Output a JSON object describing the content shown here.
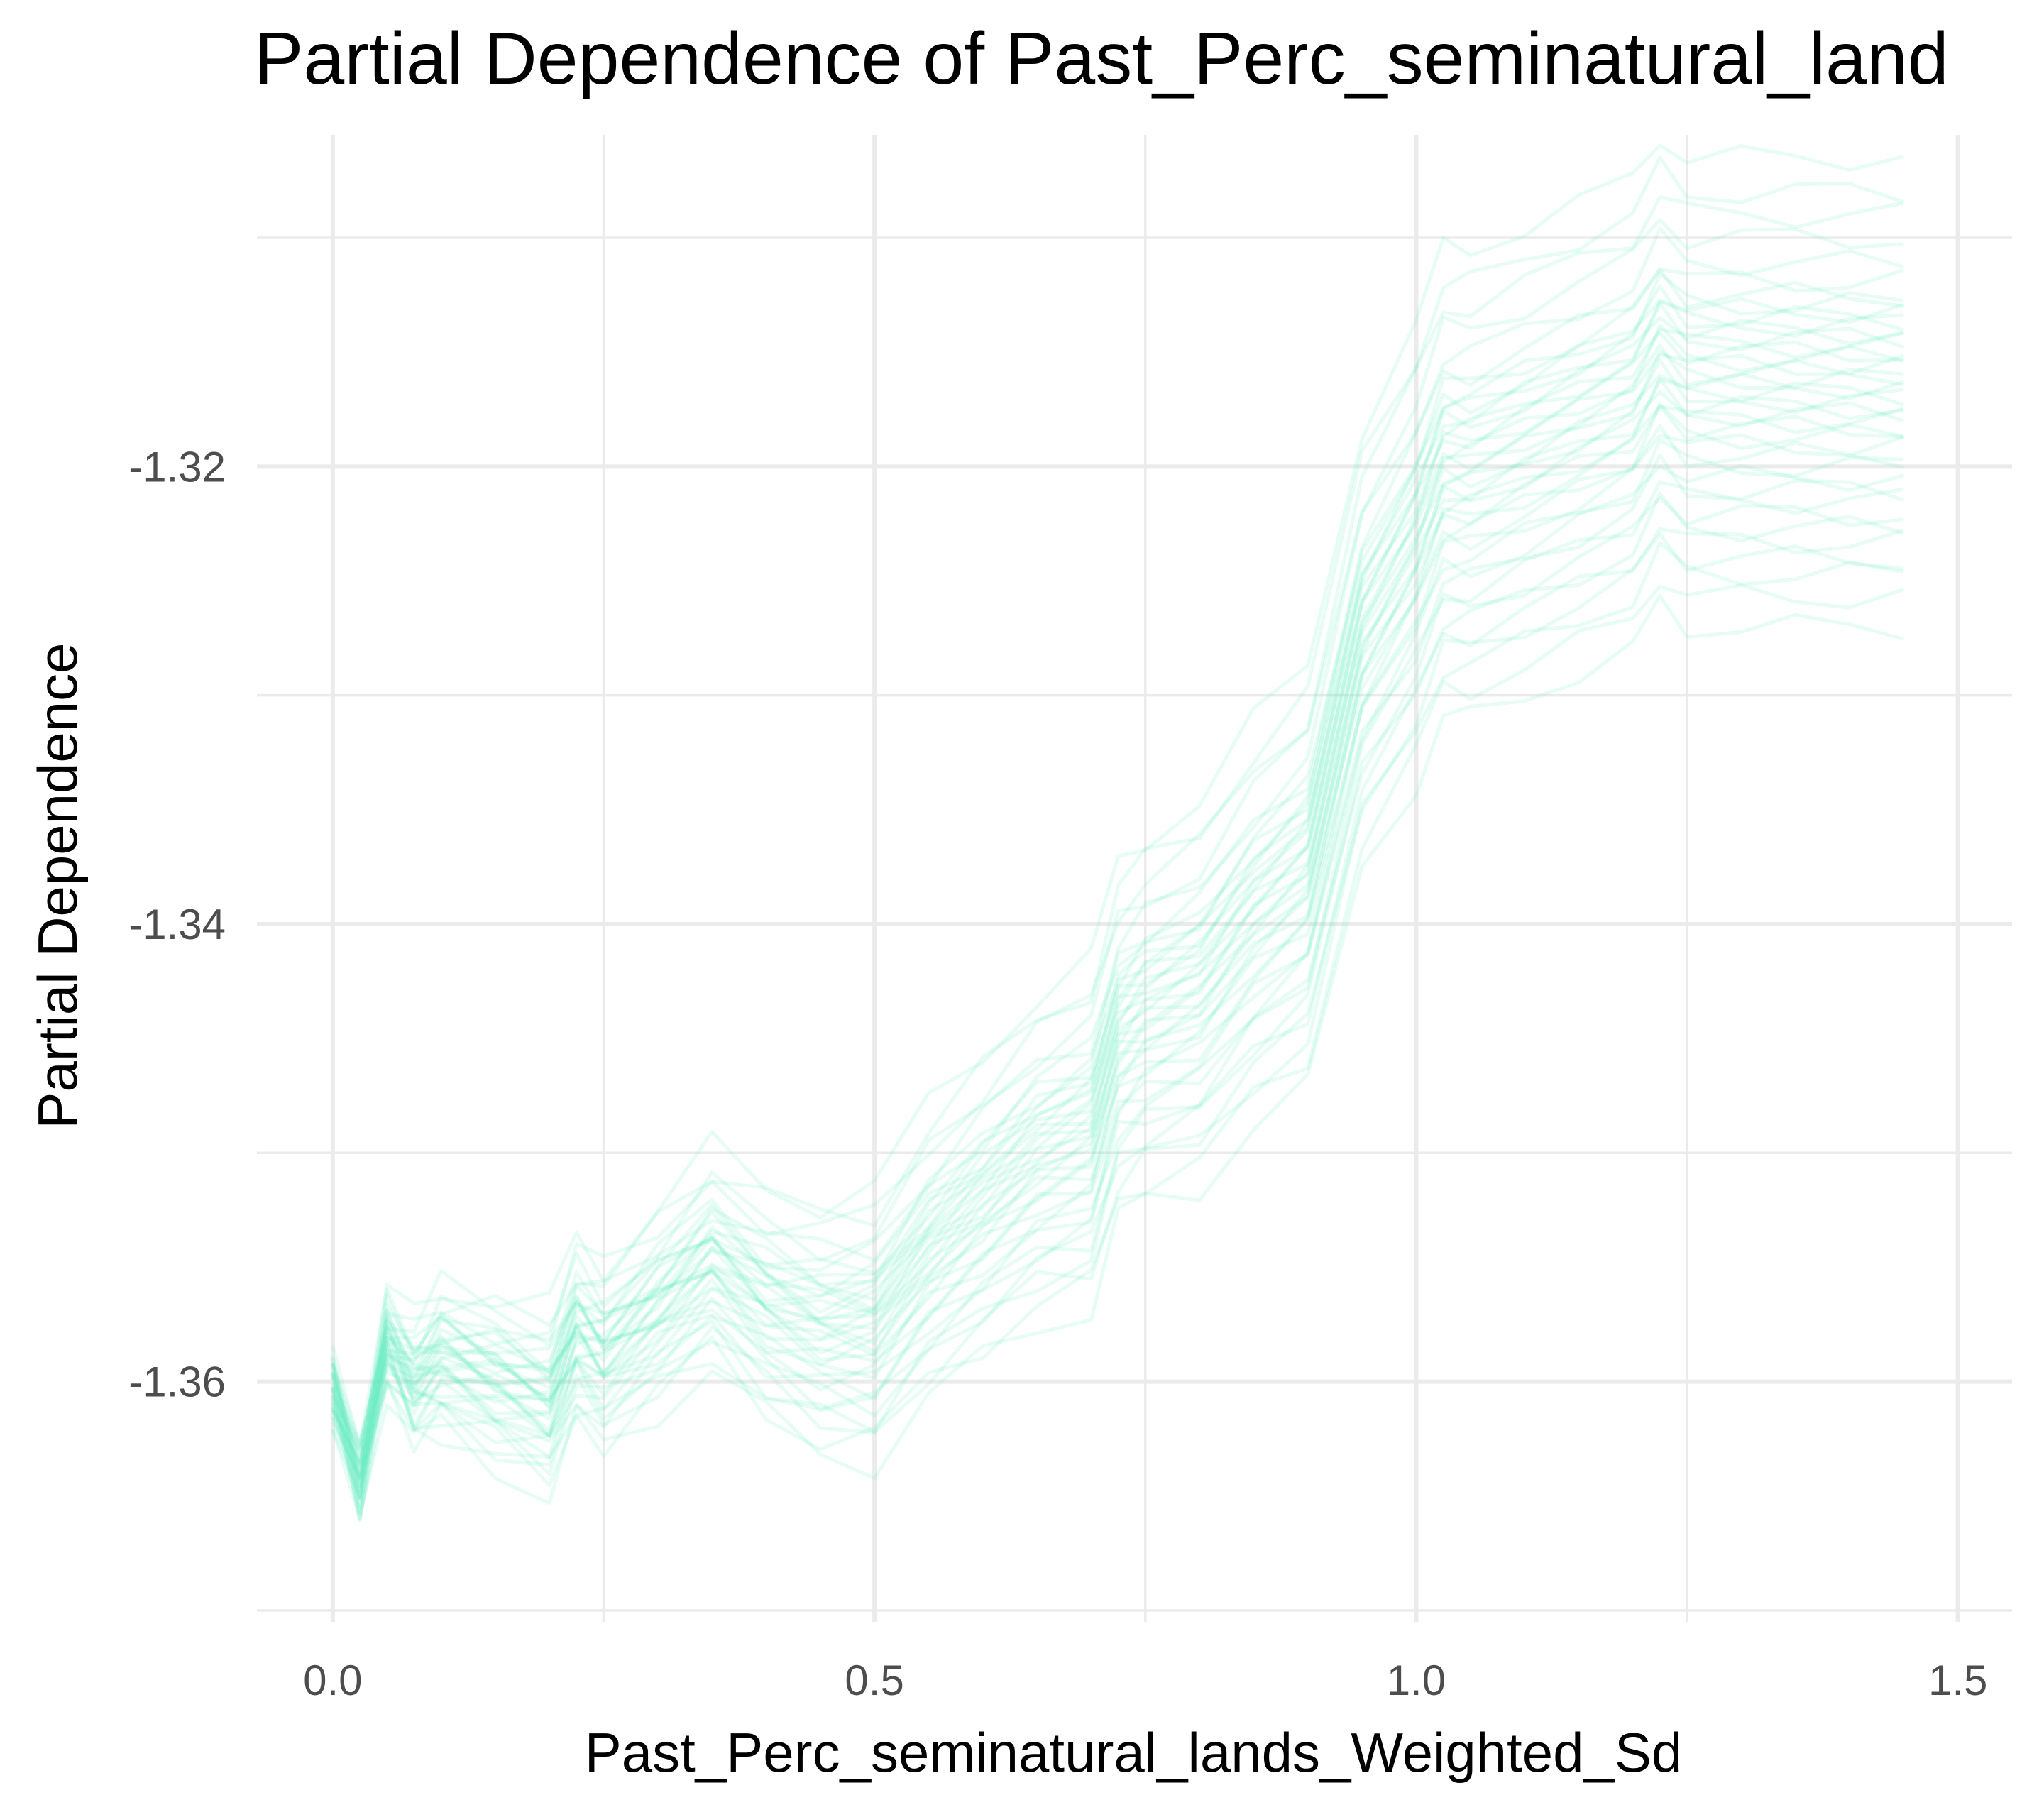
{
  "chart_data": {
    "type": "line",
    "title": "Partial Dependence of Past_Perc_seminatural_land",
    "xlabel": "Past_Perc_seminatural_lands_Weighted_Sd",
    "ylabel": "Partial Dependence",
    "xlim": [
      -0.07,
      1.55
    ],
    "ylim": [
      -1.3705,
      -1.3055
    ],
    "x_ticks": [
      0.0,
      0.5,
      1.0,
      1.5
    ],
    "x_tick_labels": [
      "0.0",
      "0.5",
      "1.0",
      "1.5"
    ],
    "y_ticks": [
      -1.32,
      -1.34,
      -1.36
    ],
    "y_tick_labels": [
      "-1.32",
      "-1.34",
      "-1.36"
    ],
    "grid": true,
    "legend": "none",
    "line_color": "#66eec0",
    "x": [
      0.0,
      0.025,
      0.05,
      0.075,
      0.1,
      0.15,
      0.2,
      0.225,
      0.25,
      0.3,
      0.35,
      0.4,
      0.45,
      0.5,
      0.55,
      0.6,
      0.65,
      0.7,
      0.725,
      0.75,
      0.8,
      0.85,
      0.9,
      0.95,
      1.0,
      1.025,
      1.05,
      1.1,
      1.15,
      1.2,
      1.225,
      1.25,
      1.3,
      1.35,
      1.4,
      1.45
    ],
    "mean_curve": [
      -1.3605,
      -1.3645,
      -1.3585,
      -1.3605,
      -1.3595,
      -1.3605,
      -1.3615,
      -1.3585,
      -1.3595,
      -1.3575,
      -1.3555,
      -1.3575,
      -1.3585,
      -1.3585,
      -1.3555,
      -1.3535,
      -1.3515,
      -1.3505,
      -1.3465,
      -1.3455,
      -1.3445,
      -1.3415,
      -1.3395,
      -1.3295,
      -1.3255,
      -1.3225,
      -1.3225,
      -1.3215,
      -1.3205,
      -1.3195,
      -1.3175,
      -1.3185,
      -1.3185,
      -1.3185,
      -1.3185,
      -1.3185
    ],
    "offset_profile": [
      0.1,
      0.12,
      0.18,
      0.26,
      0.32,
      0.36,
      0.38,
      0.39,
      0.4,
      0.42,
      0.46,
      0.5,
      0.54,
      0.58,
      0.62,
      0.66,
      0.7,
      0.74,
      0.76,
      0.78,
      0.82,
      0.86,
      0.9,
      0.94,
      0.98,
      1.0,
      1.0,
      1.0,
      1.0,
      1.0,
      1.0,
      1.0,
      1.0,
      1.0,
      1.0,
      1.0
    ],
    "series": [
      {
        "offset_end": -0.0085
      },
      {
        "offset_end": -0.0072
      },
      {
        "offset_end": -0.0062
      },
      {
        "offset_end": -0.0055
      },
      {
        "offset_end": -0.0048
      },
      {
        "offset_end": -0.0042
      },
      {
        "offset_end": -0.0036
      },
      {
        "offset_end": -0.003
      },
      {
        "offset_end": -0.0025
      },
      {
        "offset_end": -0.002
      },
      {
        "offset_end": -0.0015
      },
      {
        "offset_end": -0.001
      },
      {
        "offset_end": -0.0006
      },
      {
        "offset_end": -0.0002
      },
      {
        "offset_end": 0.0002
      },
      {
        "offset_end": 0.0005
      },
      {
        "offset_end": 0.0008
      },
      {
        "offset_end": 0.0011
      },
      {
        "offset_end": 0.0014
      },
      {
        "offset_end": 0.0017
      },
      {
        "offset_end": 0.002
      },
      {
        "offset_end": 0.0023
      },
      {
        "offset_end": 0.0026
      },
      {
        "offset_end": 0.0029
      },
      {
        "offset_end": 0.0032
      },
      {
        "offset_end": 0.0035
      },
      {
        "offset_end": 0.0038
      },
      {
        "offset_end": 0.0041
      },
      {
        "offset_end": 0.0044
      },
      {
        "offset_end": 0.0047
      },
      {
        "offset_end": 0.005
      },
      {
        "offset_end": 0.0053
      },
      {
        "offset_end": 0.0056
      },
      {
        "offset_end": 0.006
      },
      {
        "offset_end": 0.0066
      },
      {
        "offset_end": 0.0074
      },
      {
        "offset_end": 0.0085
      },
      {
        "offset_end": 0.0095
      },
      {
        "offset_end": 0.0105
      },
      {
        "offset_end": 0.012
      }
    ]
  }
}
